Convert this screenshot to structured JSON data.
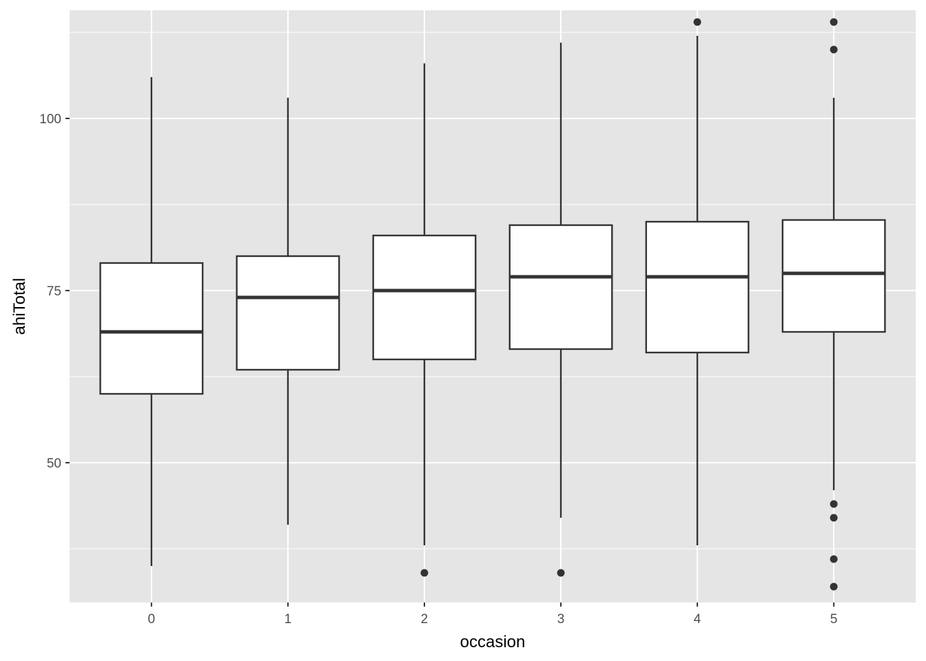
{
  "chart_data": {
    "type": "boxplot",
    "xlabel": "occasion",
    "ylabel": "ahiTotal",
    "categories": [
      "0",
      "1",
      "2",
      "3",
      "4",
      "5"
    ],
    "ylim": [
      29.7,
      115.7
    ],
    "yticks": [
      50,
      75,
      100
    ],
    "yticks_labels": [
      "50",
      "75",
      "100"
    ],
    "grid": true,
    "boxes": [
      {
        "category": "0",
        "whisker_low": 35,
        "q1": 60,
        "median": 69,
        "q3": 79,
        "whisker_high": 106,
        "outliers": []
      },
      {
        "category": "1",
        "whisker_low": 41,
        "q1": 63.5,
        "median": 74,
        "q3": 80,
        "whisker_high": 103,
        "outliers": []
      },
      {
        "category": "2",
        "whisker_low": 38,
        "q1": 65,
        "median": 75,
        "q3": 83,
        "whisker_high": 108,
        "outliers": [
          34
        ]
      },
      {
        "category": "3",
        "whisker_low": 42,
        "q1": 66.5,
        "median": 77,
        "q3": 84.5,
        "whisker_high": 111,
        "outliers": [
          34
        ]
      },
      {
        "category": "4",
        "whisker_low": 38,
        "q1": 66,
        "median": 77,
        "q3": 85,
        "whisker_high": 112,
        "outliers": [
          114
        ]
      },
      {
        "category": "5",
        "whisker_low": 46,
        "q1": 69,
        "median": 77.5,
        "q3": 85.25,
        "whisker_high": 103,
        "outliers": [
          114,
          110,
          44,
          42,
          36,
          32
        ]
      }
    ],
    "colors": {
      "panel": "#e5e5e5",
      "grid": "#ffffff",
      "box_fill": "#ffffff",
      "stroke": "#333333",
      "tick_text": "#4d4d4d",
      "title_text": "#000000"
    }
  }
}
